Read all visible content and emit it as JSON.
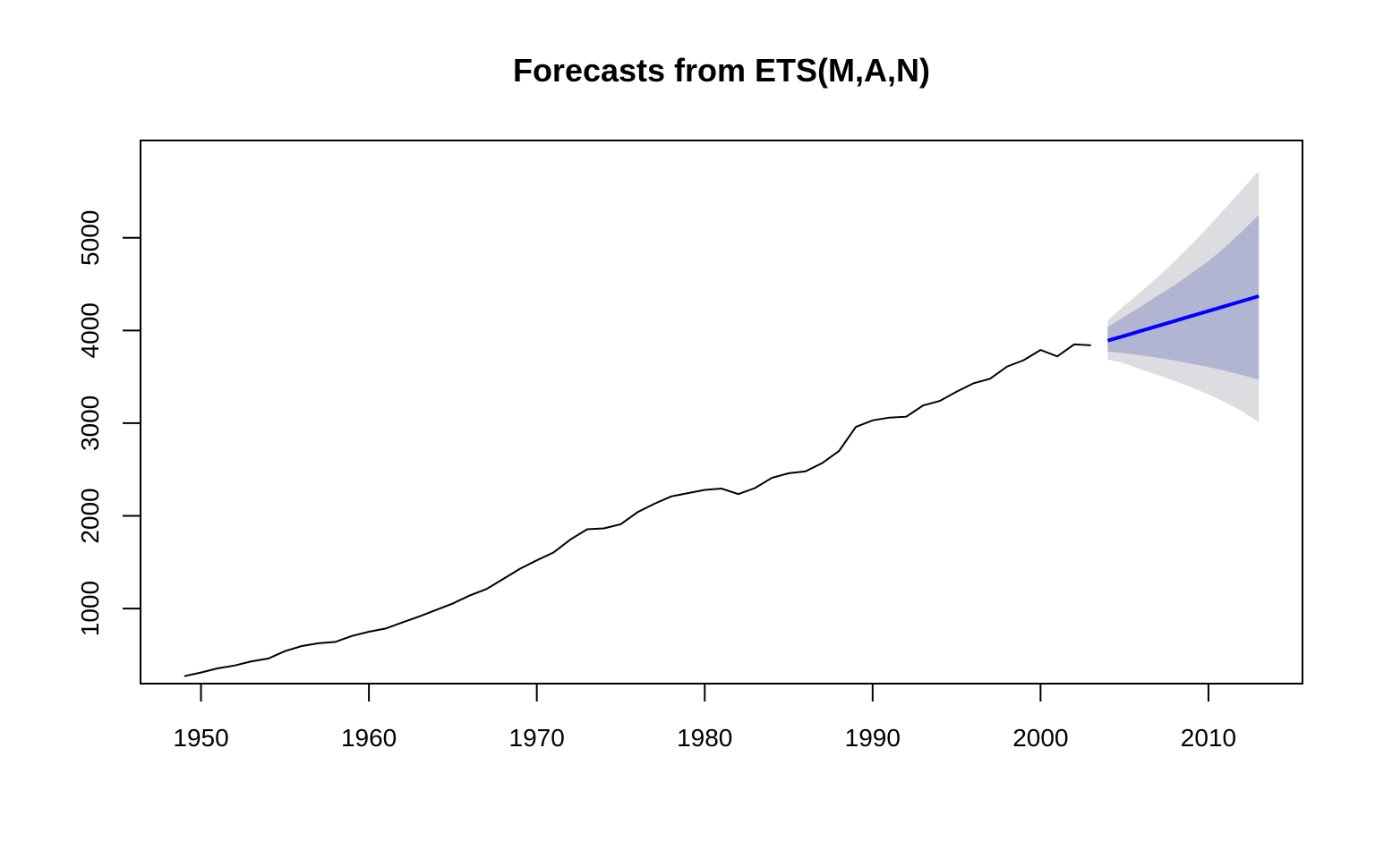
{
  "chart_data": {
    "type": "line",
    "title": "Forecasts from ETS(M,A,N)",
    "xlabel": "",
    "ylabel": "",
    "xlim": [
      1946.4,
      2015.6
    ],
    "ylim": [
      190,
      6050
    ],
    "x_ticks": [
      1950,
      1960,
      1970,
      1980,
      1990,
      2000,
      2010
    ],
    "y_ticks": [
      1000,
      2000,
      3000,
      4000,
      5000
    ],
    "series": [
      {
        "role": "observed",
        "color": "#000000",
        "x": [
          1949,
          1950,
          1951,
          1952,
          1953,
          1954,
          1955,
          1956,
          1957,
          1958,
          1959,
          1960,
          1961,
          1962,
          1963,
          1964,
          1965,
          1966,
          1967,
          1968,
          1969,
          1970,
          1971,
          1972,
          1973,
          1974,
          1975,
          1976,
          1977,
          1978,
          1979,
          1980,
          1981,
          1982,
          1983,
          1984,
          1985,
          1986,
          1987,
          1988,
          1989,
          1990,
          1991,
          1992,
          1993,
          1994,
          1995,
          1996,
          1997,
          1998,
          1999,
          2000,
          2001,
          2002,
          2003
        ],
        "values": [
          270,
          310,
          355,
          385,
          430,
          460,
          540,
          595,
          625,
          640,
          705,
          750,
          785,
          850,
          915,
          985,
          1055,
          1140,
          1210,
          1320,
          1430,
          1520,
          1605,
          1745,
          1855,
          1865,
          1910,
          2040,
          2130,
          2210,
          2245,
          2280,
          2295,
          2235,
          2300,
          2410,
          2460,
          2480,
          2570,
          2700,
          2960,
          3030,
          3060,
          3070,
          3190,
          3240,
          3340,
          3430,
          3480,
          3610,
          3680,
          3790,
          3720,
          3850,
          3840
        ]
      },
      {
        "role": "forecast",
        "color": "#0000ff",
        "x": [
          2004,
          2005,
          2006,
          2007,
          2008,
          2009,
          2010,
          2011,
          2012,
          2013
        ],
        "values": [
          3890,
          3943,
          3997,
          4050,
          4103,
          4157,
          4210,
          4263,
          4317,
          4370
        ],
        "lo80": [
          3775,
          3755,
          3730,
          3705,
          3675,
          3640,
          3605,
          3565,
          3520,
          3470
        ],
        "hi80": [
          4035,
          4150,
          4260,
          4380,
          4490,
          4620,
          4750,
          4900,
          5070,
          5250
        ],
        "lo95": [
          3690,
          3645,
          3580,
          3520,
          3455,
          3385,
          3310,
          3225,
          3130,
          3010
        ],
        "hi95": [
          4110,
          4270,
          4420,
          4580,
          4750,
          4930,
          5120,
          5320,
          5520,
          5720
        ],
        "band80_color": "#b1b5d2",
        "band95_color": "#dcdce1"
      }
    ]
  }
}
